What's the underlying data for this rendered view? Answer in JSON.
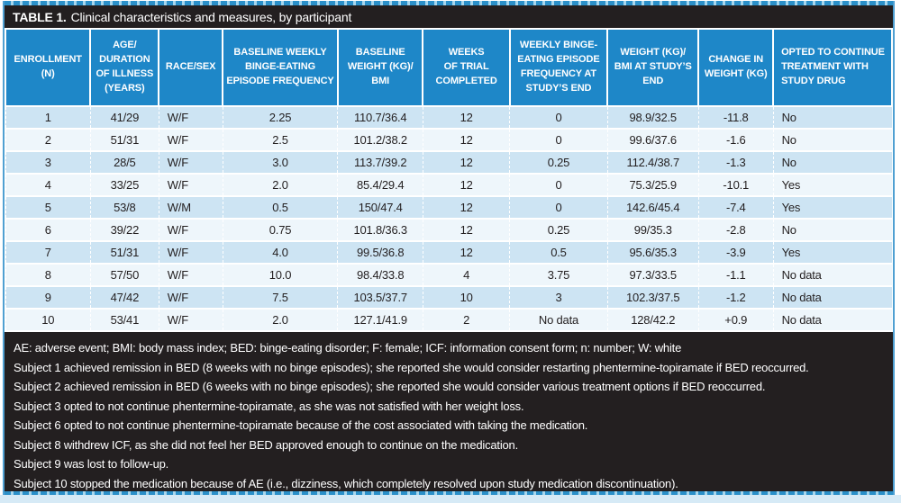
{
  "title": {
    "label": "TABLE 1.",
    "text": "Clinical characteristics and measures, by participant"
  },
  "table": {
    "columns": [
      {
        "label": "ENROLLMENT\n(N)",
        "header_align": "center",
        "cell_align": "center"
      },
      {
        "label": "AGE/\nDURATION\nOF ILLNESS\n(YEARS)",
        "header_align": "center",
        "cell_align": "center"
      },
      {
        "label": "RACE/SEX",
        "header_align": "center",
        "cell_align": "left"
      },
      {
        "label": "BASELINE WEEKLY\nBINGE-EATING\nEPISODE FREQUENCY",
        "header_align": "center",
        "cell_align": "center"
      },
      {
        "label": "BASELINE\nWEIGHT (KG)/\nBMI",
        "header_align": "center",
        "cell_align": "center"
      },
      {
        "label": "WEEKS\nOF TRIAL\nCOMPLETED",
        "header_align": "center",
        "cell_align": "center"
      },
      {
        "label": "WEEKLY BINGE-\nEATING EPISODE\nFREQUENCY AT\nSTUDY’S END",
        "header_align": "center",
        "cell_align": "center"
      },
      {
        "label": "WEIGHT (KG)/\nBMI AT STUDY’S\nEND",
        "header_align": "center",
        "cell_align": "center"
      },
      {
        "label": "CHANGE IN\nWEIGHT (KG)",
        "header_align": "center",
        "cell_align": "center"
      },
      {
        "label": "OPTED TO CONTINUE\nTREATMENT WITH\nSTUDY DRUG",
        "header_align": "left",
        "cell_align": "left"
      }
    ],
    "rows": [
      [
        "1",
        "41/29",
        "W/F",
        "2.25",
        "110.7/36.4",
        "12",
        "0",
        "98.9/32.5",
        "-11.8",
        "No"
      ],
      [
        "2",
        "51/31",
        "W/F",
        "2.5",
        "101.2/38.2",
        "12",
        "0",
        "99.6/37.6",
        "-1.6",
        "No"
      ],
      [
        "3",
        "28/5",
        "W/F",
        "3.0",
        "113.7/39.2",
        "12",
        "0.25",
        "112.4/38.7",
        "-1.3",
        "No"
      ],
      [
        "4",
        "33/25",
        "W/F",
        "2.0",
        "85.4/29.4",
        "12",
        "0",
        "75.3/25.9",
        "-10.1",
        "Yes"
      ],
      [
        "5",
        "53/8",
        "W/M",
        "0.5",
        "150/47.4",
        "12",
        "0",
        "142.6/45.4",
        "-7.4",
        "Yes"
      ],
      [
        "6",
        "39/22",
        "W/F",
        "0.75",
        "101.8/36.3",
        "12",
        "0.25",
        "99/35.3",
        "-2.8",
        "No"
      ],
      [
        "7",
        "51/31",
        "W/F",
        "4.0",
        "99.5/36.8",
        "12",
        "0.5",
        "95.6/35.3",
        "-3.9",
        "Yes"
      ],
      [
        "8",
        "57/50",
        "W/F",
        "10.0",
        "98.4/33.8",
        "4",
        "3.75",
        "97.3/33.5",
        "-1.1",
        "No data"
      ],
      [
        "9",
        "47/42",
        "W/F",
        "7.5",
        "103.5/37.7",
        "10",
        "3",
        "102.3/37.5",
        "-1.2",
        "No data"
      ],
      [
        "10",
        "53/41",
        "W/F",
        "2.0",
        "127.1/41.9",
        "2",
        "No data",
        "128/42.2",
        "+0.9",
        "No data"
      ]
    ]
  },
  "footnotes": {
    "lines": [
      "AE: adverse event; BMI: body mass index; BED: binge-eating disorder; F: female; ICF: information consent form; n: number; W: white",
      "Subject 1 achieved remission in BED (8 weeks with no binge episodes); she reported she would consider restarting phentermine-topiramate if BED reoccurred.",
      "Subject 2 achieved remission in BED (6 weeks with no binge episodes); she reported she would consider various treatment options if BED reoccurred.",
      "Subject 3 opted to not continue phentermine-topiramate, as she was not satisfied with her weight loss.",
      "Subject 6 opted to not continue phentermine-topiramate because of the cost associated with taking the medication.",
      "Subject 8 withdrew ICF, as she did not feel her BED approved enough to continue on the medication.",
      "Subject 9 was lost to follow-up.",
      "Subject 10 stopped the medication because of AE (i.e., dizziness, which completely resolved upon study medication discontinuation)."
    ]
  },
  "colors": {
    "header_bg": "#1e87c8",
    "row_odd": "#cde4f3",
    "row_even": "#eef6fb",
    "black_bar": "#231f20",
    "frame_blue": "#4fa0d2",
    "bottom_strip": "#d6eaf6",
    "text_light": "#ffffff",
    "text_dark": "#231f20"
  }
}
